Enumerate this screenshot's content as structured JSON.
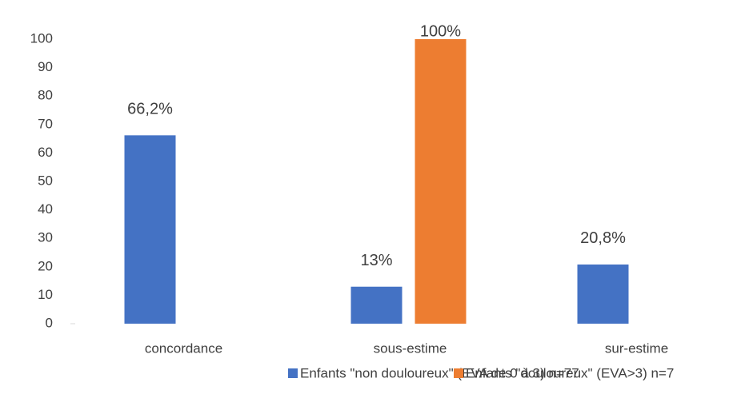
{
  "chart_data": {
    "type": "bar",
    "categories": [
      "concordance",
      "sous-estime",
      "sur-estime"
    ],
    "series": [
      {
        "name": "Enfants \"non douloureux\" (EVA de 0 à 3) n=77",
        "color": "#4472c4",
        "values": [
          66.2,
          13,
          20.8
        ],
        "value_labels": [
          "66,2%",
          "13%",
          "20,8%"
        ]
      },
      {
        "name": "Enfants \"douloureux\" (EVA>3) n=7",
        "color": "#ed7d31",
        "values": [
          null,
          100,
          null
        ],
        "value_labels": [
          null,
          "100%",
          null
        ]
      }
    ],
    "ylim": [
      0,
      100
    ],
    "yticks": [
      0,
      10,
      20,
      30,
      40,
      50,
      60,
      70,
      80,
      90,
      100
    ],
    "grid": false,
    "legend": "bottom"
  }
}
